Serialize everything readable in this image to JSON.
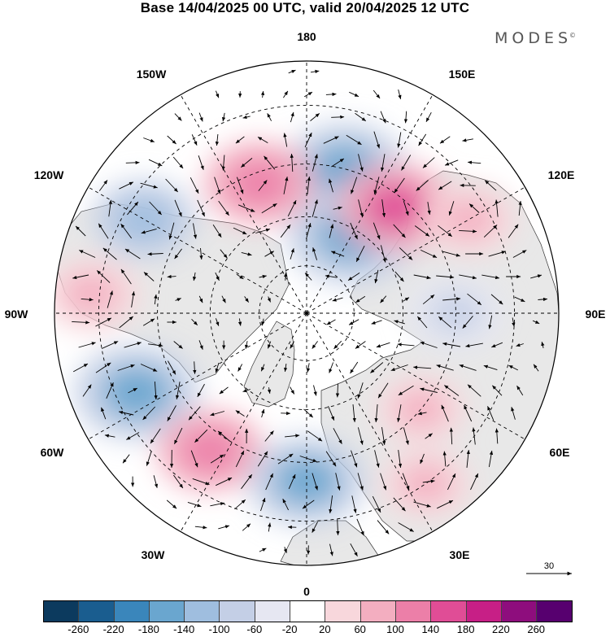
{
  "title": "Base 14/04/2025 00 UTC, valid 20/04/2025 12 UTC",
  "brand": "MODES",
  "brand_mark": "©",
  "longitude_labels": {
    "lon_180": "180",
    "lon_150e": "150E",
    "lon_120e": "120E",
    "lon_90e": "90E",
    "lon_60e": "60E",
    "lon_30e": "30E",
    "lon_0": "0",
    "lon_30w": "30W",
    "lon_60w": "60W",
    "lon_90w": "90W",
    "lon_120w": "120W",
    "lon_150w": "150W"
  },
  "reference_vector": {
    "value": "30"
  },
  "colorbar": {
    "colors": [
      "#0c3a5e",
      "#1a5d8f",
      "#3a86bb",
      "#6aa6cf",
      "#9fbedf",
      "#c4cfe6",
      "#e6e7f2",
      "#ffffff",
      "#f8d7dc",
      "#f3aec0",
      "#ec7fa8",
      "#e04d96",
      "#c71f86",
      "#8e0d7d",
      "#57006f"
    ],
    "ticks": [
      "-260",
      "-220",
      "-180",
      "-140",
      "-100",
      "-60",
      "-20",
      "20",
      "60",
      "100",
      "140",
      "180",
      "220",
      "260"
    ]
  },
  "anomaly_centers": [
    {
      "lon": 165,
      "lat": 45,
      "value": -160
    },
    {
      "lon": 150,
      "lat": 62,
      "value": -180
    },
    {
      "lon": 140,
      "lat": 48,
      "value": 150
    },
    {
      "lon": -160,
      "lat": 48,
      "value": 130
    },
    {
      "lon": -120,
      "lat": 35,
      "value": -110
    },
    {
      "lon": -95,
      "lat": 28,
      "value": 90
    },
    {
      "lon": -65,
      "lat": 35,
      "value": -170
    },
    {
      "lon": -35,
      "lat": 40,
      "value": 120
    },
    {
      "lon": 0,
      "lat": 40,
      "value": -150
    },
    {
      "lon": 35,
      "lat": 30,
      "value": 70
    },
    {
      "lon": 50,
      "lat": 45,
      "value": 70
    },
    {
      "lon": 90,
      "lat": 45,
      "value": -90
    },
    {
      "lon": 120,
      "lat": 35,
      "value": 80
    }
  ]
}
